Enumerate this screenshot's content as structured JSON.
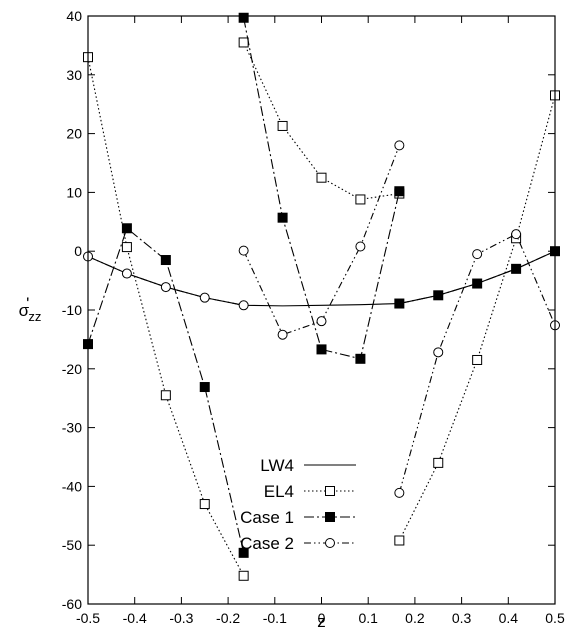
{
  "chart_data": {
    "type": "line",
    "xlabel": "z",
    "ylabel_main": "σ",
    "ylabel_sub": "zz",
    "ylabel_accent": "'",
    "xlim": [
      -0.5,
      0.5
    ],
    "ylim": [
      -60,
      40
    ],
    "xticks": [
      -0.5,
      -0.4,
      -0.3,
      -0.2,
      -0.1,
      0,
      0.1,
      0.2,
      0.3,
      0.4,
      0.5
    ],
    "xtick_labels": [
      "-0.5",
      "-0.4",
      "-0.3",
      "-0.2",
      "-0.1",
      "0",
      "0.1",
      "0.2",
      "0.3",
      "0.4",
      "0.5"
    ],
    "yticks": [
      -60,
      -50,
      -40,
      -30,
      -20,
      -10,
      0,
      10,
      20,
      30,
      40
    ],
    "ytick_labels": [
      "-60",
      "-50",
      "-40",
      "-30",
      "-20",
      "-10",
      "0",
      "10",
      "20",
      "30",
      "40"
    ],
    "grid": false,
    "legend_position": "lower-center",
    "series": [
      {
        "name": "LW4",
        "line_style": "solid",
        "marker": "none",
        "segments": [
          [
            [
              -0.5,
              -0.9
            ],
            [
              -0.4167,
              -3.8
            ],
            [
              -0.3333,
              -6.1
            ],
            [
              -0.25,
              -7.9
            ],
            [
              -0.1667,
              -9.2
            ],
            [
              -0.0833,
              -9.3
            ],
            [
              0,
              -9.2
            ],
            [
              0.0833,
              -9.1
            ],
            [
              0.1667,
              -8.9
            ],
            [
              0.25,
              -7.5
            ],
            [
              0.3333,
              -5.5
            ],
            [
              0.4167,
              -3.0
            ],
            [
              0.5,
              0.0
            ]
          ]
        ]
      },
      {
        "name": "EL4",
        "line_style": "dotted",
        "marker": "open-square",
        "segments": [
          [
            [
              -0.5,
              33.0
            ],
            [
              -0.4167,
              0.7
            ],
            [
              -0.3333,
              -24.5
            ],
            [
              -0.25,
              -43.0
            ],
            [
              -0.1667,
              -55.2
            ]
          ],
          [
            [
              -0.1667,
              35.5
            ],
            [
              -0.0833,
              21.3
            ],
            [
              0,
              12.5
            ],
            [
              0.0833,
              8.8
            ],
            [
              0.1667,
              9.8
            ]
          ],
          [
            [
              0.1667,
              -49.2
            ],
            [
              0.25,
              -36.0
            ],
            [
              0.3333,
              -18.5
            ],
            [
              0.4167,
              2.2
            ],
            [
              0.5,
              26.5
            ]
          ]
        ]
      },
      {
        "name": "Case 1",
        "line_style": "dash-dot",
        "marker": "filled-square",
        "segments": [
          [
            [
              -0.5,
              -15.8
            ],
            [
              -0.4167,
              3.9
            ],
            [
              -0.3333,
              -1.5
            ],
            [
              -0.25,
              -23.1
            ],
            [
              -0.1667,
              -51.3
            ]
          ],
          [
            [
              -0.1667,
              39.7
            ],
            [
              -0.0833,
              5.7
            ],
            [
              0,
              -16.7
            ],
            [
              0.0833,
              -18.3
            ],
            [
              0.1667,
              10.2
            ]
          ],
          [
            [
              0.1667,
              -8.9
            ],
            [
              0.25,
              -7.5
            ],
            [
              0.3333,
              -5.5
            ],
            [
              0.4167,
              -3.0
            ],
            [
              0.5,
              0.0
            ]
          ]
        ]
      },
      {
        "name": "Case 2",
        "line_style": "dash-dot-dot",
        "marker": "open-circle",
        "segments": [
          [
            [
              -0.5,
              -0.9
            ],
            [
              -0.4167,
              -3.8
            ],
            [
              -0.3333,
              -6.1
            ],
            [
              -0.25,
              -7.9
            ],
            [
              -0.1667,
              -9.2
            ]
          ],
          [
            [
              -0.1667,
              0.1
            ],
            [
              -0.0833,
              -14.2
            ],
            [
              0,
              -11.9
            ],
            [
              0.0833,
              0.8
            ],
            [
              0.1667,
              18.0
            ]
          ],
          [
            [
              0.1667,
              -41.1
            ],
            [
              0.25,
              -17.2
            ],
            [
              0.3333,
              -0.5
            ],
            [
              0.4167,
              2.9
            ],
            [
              0.5,
              -12.6
            ]
          ]
        ]
      }
    ]
  }
}
